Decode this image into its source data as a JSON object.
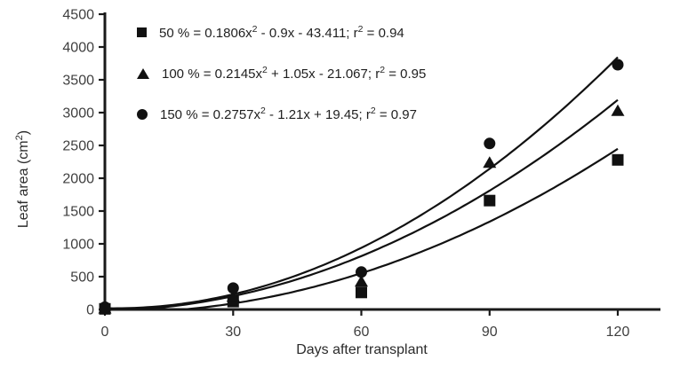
{
  "figure": {
    "background": "#ffffff",
    "axis_color": "#1a1a1a",
    "tick_label_color": "#3f3f3f",
    "series_color": "#111111"
  },
  "chart_data": {
    "type": "scatter",
    "title": "",
    "xlabel": "Days after transplant",
    "ylabel": "Leaf area (cm²)",
    "xlim": [
      0,
      130
    ],
    "ylim": [
      0,
      4500
    ],
    "xticks": [
      0,
      30,
      60,
      90,
      120
    ],
    "yticks": [
      0,
      500,
      1000,
      1500,
      2000,
      2500,
      3000,
      3500,
      4000,
      4500
    ],
    "grid": false,
    "legend_position": "top-left-inside",
    "x": [
      0,
      30,
      60,
      90,
      120
    ],
    "series": [
      {
        "name": "50 %",
        "marker": "square",
        "values": [
          10,
          120,
          260,
          1660,
          2280
        ],
        "trendline": {
          "type": "quadratic",
          "a": 0.1806,
          "b": -0.9,
          "c": -43.411,
          "r2": 0.94
        },
        "legend_label": "50 % = 0.1806x² - 0.9x - 43.411; r² = 0.94"
      },
      {
        "name": "100 %",
        "marker": "triangle",
        "values": [
          20,
          200,
          430,
          2240,
          3030
        ],
        "trendline": {
          "type": "quadratic",
          "a": 0.2145,
          "b": 1.05,
          "c": -21.067,
          "r2": 0.95
        },
        "legend_label": "100 % = 0.2145x² + 1.05x - 21.067; r² = 0.95"
      },
      {
        "name": "150 %",
        "marker": "circle",
        "values": [
          35,
          325,
          570,
          2530,
          3730
        ],
        "trendline": {
          "type": "quadratic",
          "a": 0.2757,
          "b": -1.21,
          "c": 19.45,
          "r2": 0.97
        },
        "legend_label": "150 % = 0.2757x² - 1.21x + 19.45; r² = 0.97"
      }
    ]
  }
}
